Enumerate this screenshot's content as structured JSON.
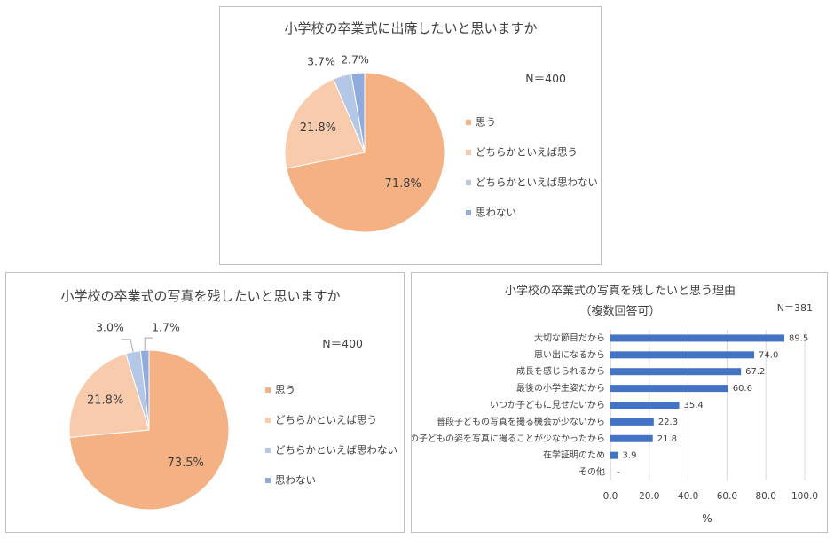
{
  "colors": {
    "omou": "#f4b183",
    "dochiraka_omou": "#f8cbad",
    "dochiraka_omowanai": "#b4c7e7",
    "omowanai": "#8faadc",
    "bar": "#4472c4",
    "grid": "#d9d9d9",
    "leader": "#a6a6a6"
  },
  "chart_data": [
    {
      "type": "pie",
      "title": "小学校の卒業式に出席したいと思いますか",
      "n_label": "N＝400",
      "categories": [
        "思う",
        "どちらかといえば思う",
        "どちらかといえば思わない",
        "思わない"
      ],
      "values": [
        71.8,
        21.8,
        3.7,
        2.7
      ],
      "labels": [
        "71.8%",
        "21.8%",
        "3.7%",
        "2.7%"
      ],
      "legend": "right"
    },
    {
      "type": "pie",
      "title": "小学校の卒業式の写真を残したいと思いますか",
      "n_label": "N＝400",
      "categories": [
        "思う",
        "どちらかといえば思う",
        "どちらかといえば思わない",
        "思わない"
      ],
      "values": [
        73.5,
        21.8,
        3.0,
        1.7
      ],
      "labels": [
        "73.5%",
        "21.8%",
        "3.0%",
        "1.7%"
      ],
      "legend": "right"
    },
    {
      "type": "bar",
      "orientation": "horizontal",
      "title": "小学校の卒業式の写真を残したいと思う理由",
      "subtitle": "（複数回答可）",
      "n_label": "N＝381",
      "categories": [
        "大切な節目だから",
        "思い出になるから",
        "成長を感じられるから",
        "最後の小学生姿だから",
        "いつか子どもに見せたいから",
        "普段子どもの写真を撮る機会が少ないから",
        "学校での子どもの姿を写真に撮ることが少なかったから",
        "在学証明のため",
        "その他"
      ],
      "values": [
        89.5,
        74.0,
        67.2,
        60.6,
        35.4,
        22.3,
        21.8,
        3.9,
        null
      ],
      "value_labels": [
        "89.5",
        "74.0",
        "67.2",
        "60.6",
        "35.4",
        "22.3",
        "21.8",
        "3.9",
        "-"
      ],
      "xlim": [
        0,
        100
      ],
      "xticks": [
        "0.0",
        "20.0",
        "40.0",
        "60.0",
        "80.0",
        "100.0"
      ],
      "xlabel": "%",
      "grid": true
    }
  ]
}
